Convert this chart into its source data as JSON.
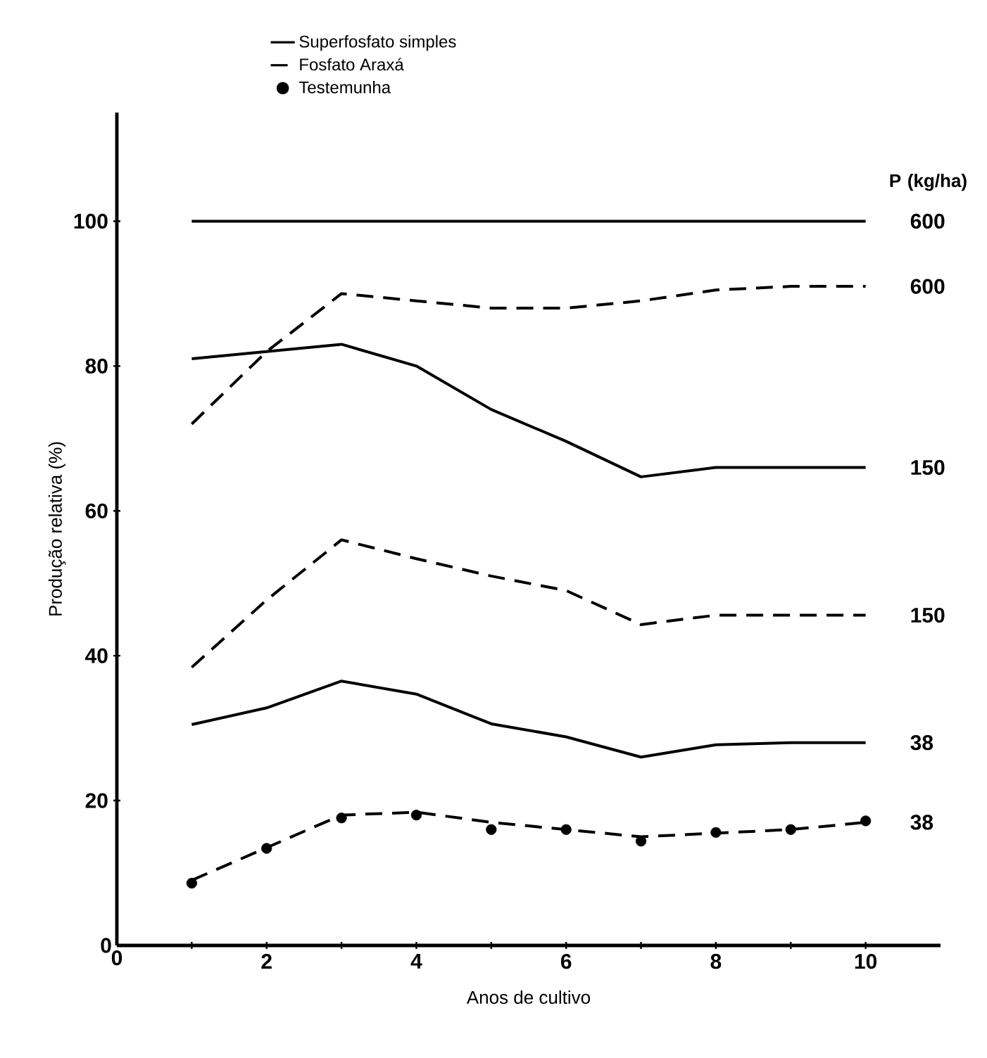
{
  "chart_data": {
    "type": "line",
    "xlabel": "Anos de cultivo",
    "ylabel": "Produção relativa (%)",
    "xlim": [
      0,
      11
    ],
    "ylim": [
      0,
      115
    ],
    "xticks": [
      0,
      {
        "value": 1,
        "label": null
      },
      2,
      {
        "value": 3,
        "label": null
      },
      4,
      {
        "value": 5,
        "label": null
      },
      6,
      {
        "value": 7,
        "label": null
      },
      8,
      {
        "value": 9,
        "label": null
      },
      10
    ],
    "yticks": [
      0,
      20,
      40,
      60,
      80,
      100
    ],
    "legend": "top",
    "x": [
      1,
      2,
      3,
      4,
      5,
      6,
      7,
      8,
      9,
      10
    ],
    "series": [
      {
        "name": "Superfosfato simples",
        "color": "#000000",
        "line_style": "solid",
        "values": [
          100,
          100,
          100,
          100,
          100,
          100,
          100,
          100,
          100,
          100
        ]
      },
      {
        "name": "Fosfato Araxá",
        "color": "#000000",
        "line_style": "dashed",
        "values": [
          72,
          82,
          90,
          89,
          88,
          88,
          89,
          90.5,
          91,
          91
        ]
      },
      {
        "color": "#000000",
        "line_style": "solid",
        "values": [
          81,
          82,
          83,
          80,
          74,
          69.6,
          64.7,
          66,
          66,
          66
        ]
      },
      {
        "color": "#000000",
        "line_style": "dashed",
        "values": [
          38.4,
          47.7,
          56,
          53.4,
          51,
          49,
          44.3,
          45.6,
          45.6,
          45.6
        ]
      },
      {
        "color": "#000000",
        "line_style": "solid",
        "values": [
          30.5,
          32.8,
          36.5,
          34.7,
          30.6,
          28.8,
          26,
          27.7,
          28,
          28
        ]
      },
      {
        "color": "#000000",
        "line_style": "dashed",
        "values": [
          9,
          13.5,
          18,
          18.4,
          17,
          16,
          15,
          15.5,
          16,
          17
        ]
      },
      {
        "name": "Testemunha",
        "type": "scatter",
        "marker": "circle",
        "color": "#000000",
        "values": [
          8.6,
          13.4,
          17.6,
          18,
          16,
          16,
          14.4,
          15.6,
          16,
          17.2
        ]
      }
    ],
    "annotations": [
      "P (kg/ha)",
      "600",
      "600",
      "150",
      "150",
      "38",
      "38"
    ]
  }
}
